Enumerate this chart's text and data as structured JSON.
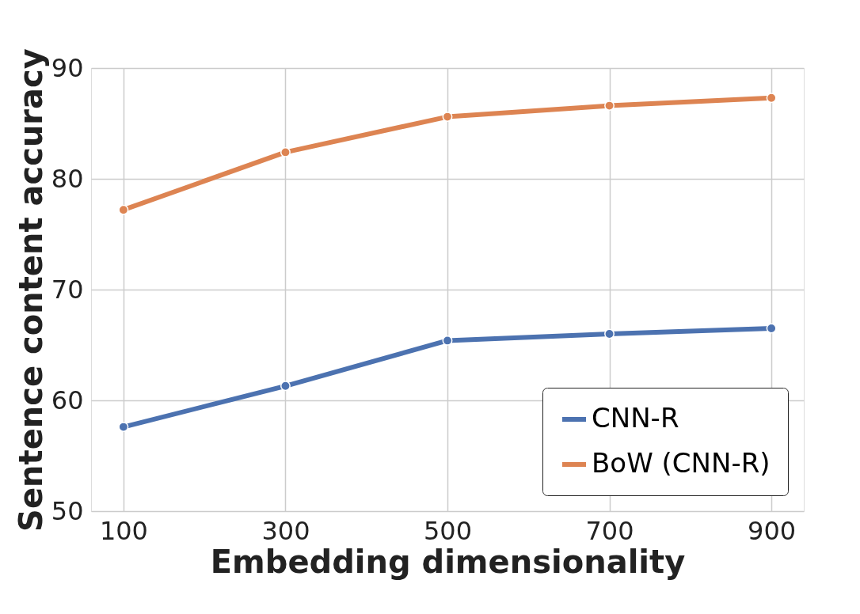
{
  "chart_data": {
    "type": "line",
    "xlabel": "Embedding dimensionality",
    "ylabel": "Sentence content accuracy",
    "x": [
      100,
      300,
      500,
      700,
      900
    ],
    "series": [
      {
        "name": "CNN-R",
        "color": "#4c72b0",
        "values": [
          57.6,
          61.3,
          65.4,
          66.0,
          66.5
        ]
      },
      {
        "name": "BoW (CNN-R)",
        "color": "#dd8452",
        "values": [
          77.2,
          82.4,
          85.6,
          86.6,
          87.3
        ]
      }
    ],
    "xlim": [
      60,
      940
    ],
    "xticks": [
      100,
      300,
      500,
      700,
      900
    ],
    "ylim": [
      50,
      90
    ],
    "yticks": [
      50,
      60,
      70,
      80,
      90
    ],
    "grid": true,
    "legend": "bottom right",
    "marker": "circle",
    "line_style": "solid"
  }
}
